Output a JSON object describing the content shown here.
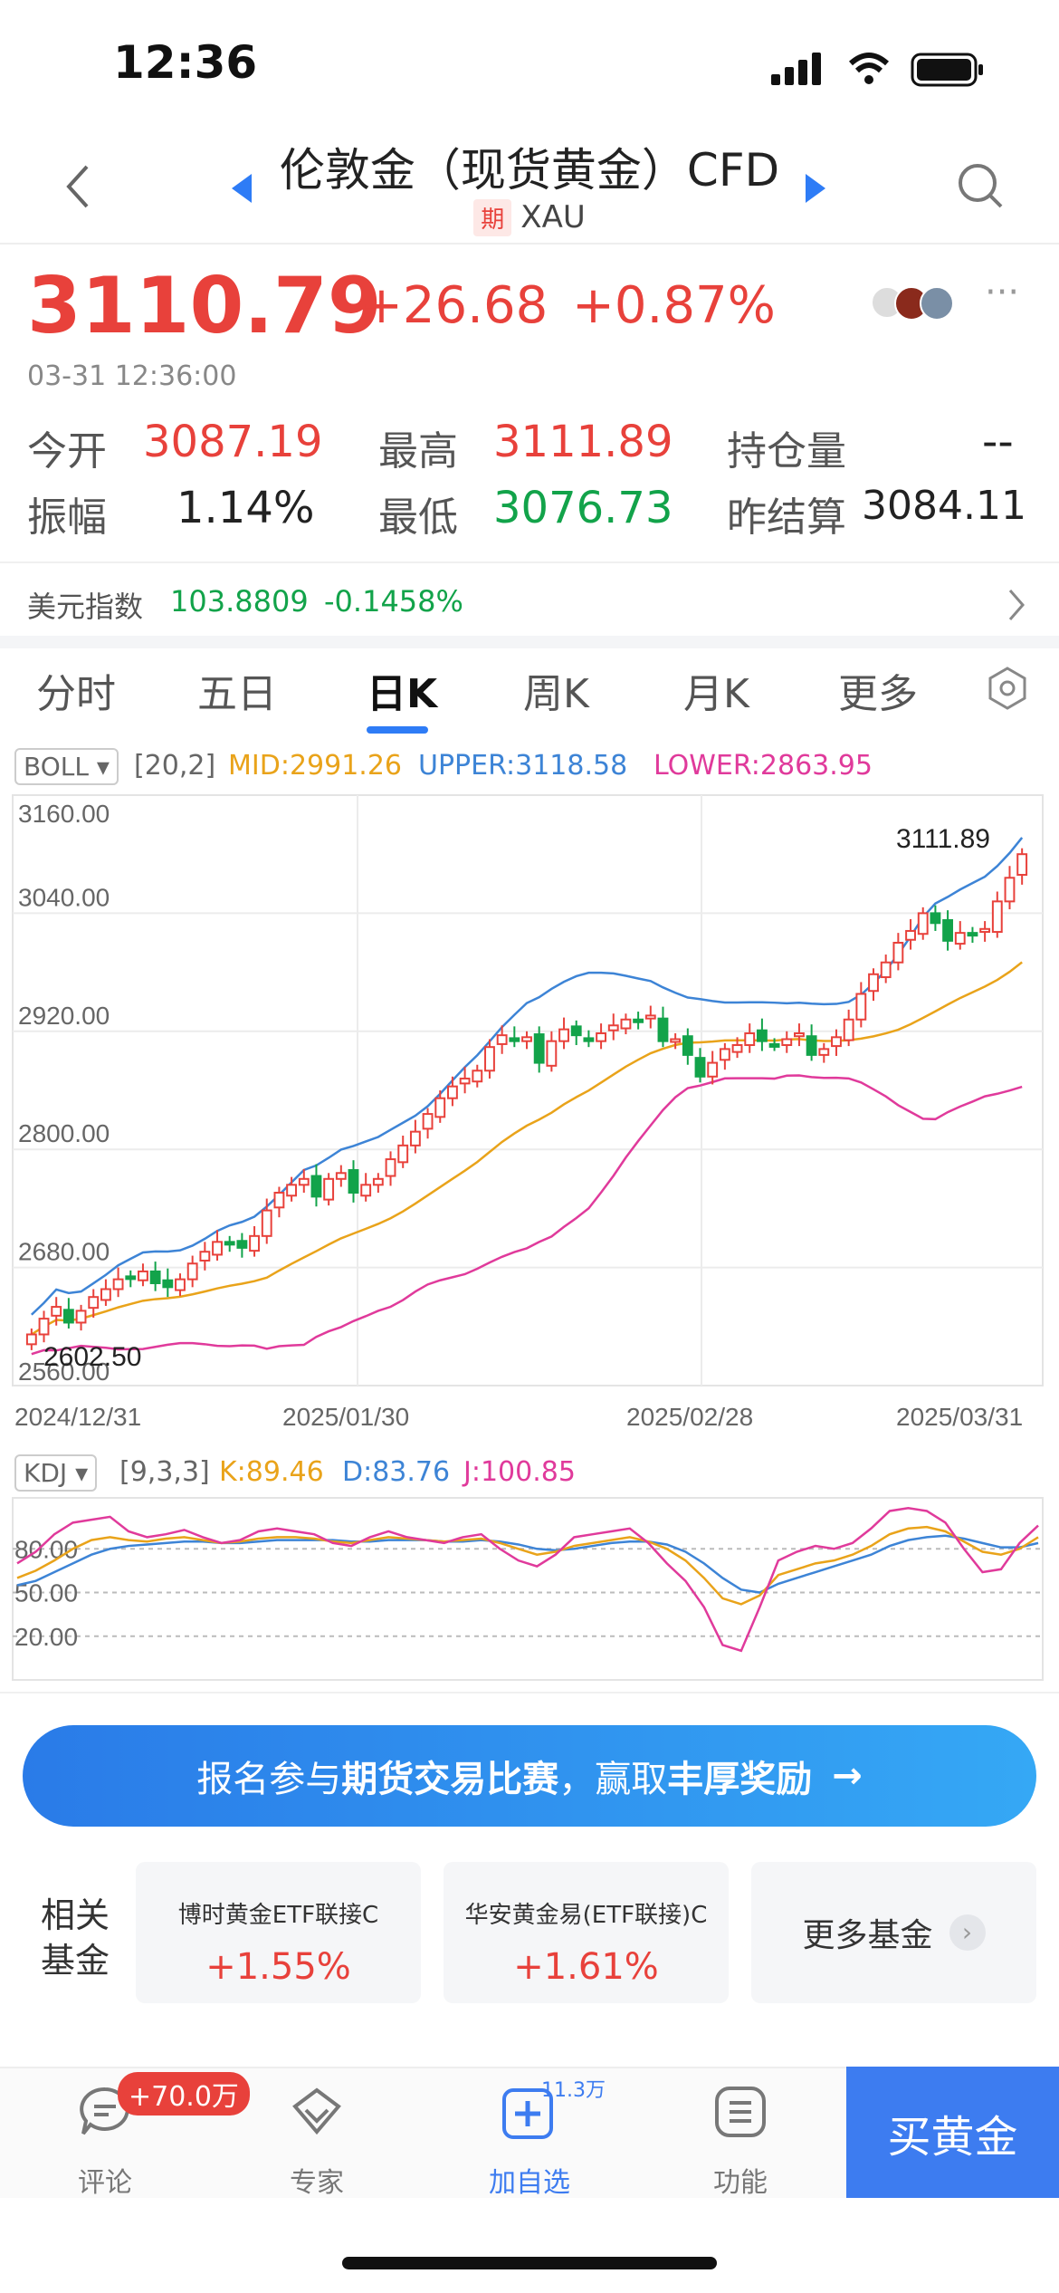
{
  "status_bar": {
    "time": "12:36"
  },
  "header": {
    "title": "伦敦金（现货黄金）CFD",
    "tag": "期",
    "symbol": "XAU"
  },
  "quote": {
    "price": "3110.79",
    "change": "+26.68",
    "change_pct": "+0.87%",
    "timestamp": "03-31 12:36:00",
    "fields": [
      {
        "label": "今开",
        "value": "3087.19",
        "color": "#e8413b"
      },
      {
        "label": "最高",
        "value": "3111.89",
        "color": "#e8413b"
      },
      {
        "label": "持仓量",
        "value": "--",
        "color": "#222222"
      },
      {
        "label": "振幅",
        "value": "1.14%",
        "color": "#222222"
      },
      {
        "label": "最低",
        "value": "3076.73",
        "color": "#12a34a"
      },
      {
        "label": "昨结算",
        "value": "3084.11",
        "color": "#222222"
      }
    ]
  },
  "usd_index": {
    "label": "美元指数",
    "value": "103.8809",
    "change": "-0.1458%"
  },
  "tabs": [
    "分时",
    "五日",
    "日K",
    "周K",
    "月K",
    "更多"
  ],
  "active_tab": "日K",
  "boll": {
    "name": "BOLL",
    "params": "[20,2]",
    "mid": "MID:2991.26",
    "upper": "UPPER:3118.58",
    "lower": "LOWER:2863.95"
  },
  "kdj": {
    "name": "KDJ",
    "params": "[9,3,3]",
    "k": "K:89.46",
    "d": "D:83.76",
    "j": "J:100.85"
  },
  "chart_data": {
    "type": "candlestick",
    "ylim": [
      2560,
      3160
    ],
    "y_ticks": [
      "3160.00",
      "3040.00",
      "2920.00",
      "2800.00",
      "2680.00",
      "2560.00"
    ],
    "x_ticks": [
      "2024/12/31",
      "2025/01/30",
      "2025/02/28",
      "2025/03/31"
    ],
    "high_label": "3111.89",
    "low_label": "2602.50",
    "closes": [
      2612,
      2628,
      2640,
      2624,
      2636,
      2650,
      2658,
      2668,
      2670,
      2676,
      2664,
      2660,
      2668,
      2684,
      2696,
      2706,
      2704,
      2700,
      2712,
      2738,
      2756,
      2764,
      2770,
      2752,
      2770,
      2776,
      2756,
      2764,
      2770,
      2790,
      2804,
      2818,
      2836,
      2852,
      2864,
      2872,
      2880,
      2904,
      2916,
      2910,
      2914,
      2888,
      2910,
      2922,
      2916,
      2910,
      2918,
      2926,
      2932,
      2930,
      2936,
      2910,
      2912,
      2896,
      2874,
      2888,
      2902,
      2906,
      2918,
      2910,
      2906,
      2912,
      2918,
      2896,
      2902,
      2914,
      2932,
      2958,
      2978,
      2990,
      3010,
      3022,
      3040,
      3030,
      3012,
      3020,
      3018,
      3024,
      3052,
      3076,
      3100
    ],
    "kdj_ylim": [
      0,
      100
    ],
    "kdj_ticks": [
      "80.00",
      "50.00",
      "20.00"
    ],
    "k": [
      60,
      65,
      72,
      80,
      86,
      88,
      86,
      85,
      87,
      88,
      86,
      84,
      85,
      87,
      88,
      88,
      87,
      85,
      84,
      86,
      88,
      87,
      86,
      85,
      86,
      87,
      84,
      80,
      76,
      78,
      82,
      84,
      86,
      88,
      85,
      80,
      72,
      60,
      46,
      42,
      48,
      62,
      66,
      70,
      72,
      76,
      82,
      90,
      94,
      95,
      92,
      85,
      78,
      76,
      80,
      88
    ],
    "d": [
      55,
      58,
      64,
      70,
      76,
      80,
      82,
      83,
      84,
      85,
      85,
      84,
      84,
      85,
      86,
      86,
      86,
      86,
      85,
      85,
      86,
      86,
      86,
      85,
      85,
      86,
      85,
      83,
      80,
      79,
      80,
      82,
      84,
      85,
      85,
      83,
      78,
      70,
      60,
      52,
      50,
      56,
      60,
      64,
      68,
      72,
      76,
      82,
      86,
      88,
      89,
      87,
      84,
      81,
      81,
      84
    ],
    "j": [
      70,
      78,
      90,
      98,
      100,
      102,
      92,
      88,
      90,
      93,
      88,
      84,
      86,
      92,
      94,
      92,
      90,
      84,
      82,
      88,
      92,
      88,
      86,
      84,
      88,
      90,
      80,
      72,
      68,
      76,
      88,
      90,
      92,
      94,
      84,
      70,
      58,
      40,
      14,
      10,
      40,
      72,
      78,
      82,
      80,
      84,
      94,
      106,
      108,
      106,
      98,
      80,
      64,
      66,
      84,
      96
    ]
  },
  "banner": {
    "text_1": "报名参与",
    "text_2": "期货交易比赛",
    "text_3": "，赢取",
    "text_4": "丰厚奖励",
    "arrow": "→"
  },
  "funds": {
    "label": "相关基金",
    "items": [
      {
        "name": "博时黄金ETF联接C",
        "change": "+1.55%"
      },
      {
        "name": "华安黄金易(ETF联接)C",
        "change": "+1.61%"
      }
    ],
    "more": "更多基金"
  },
  "bottom_nav": {
    "badge": "+70.0万",
    "items": [
      {
        "label": "评论",
        "icon": "comment-icon"
      },
      {
        "label": "专家",
        "icon": "expert-icon"
      },
      {
        "label": "加自选",
        "icon": "add-watchlist-icon"
      },
      {
        "label": "功能",
        "icon": "function-icon"
      }
    ],
    "watch_count": "11.3万",
    "buy": "买黄金"
  }
}
